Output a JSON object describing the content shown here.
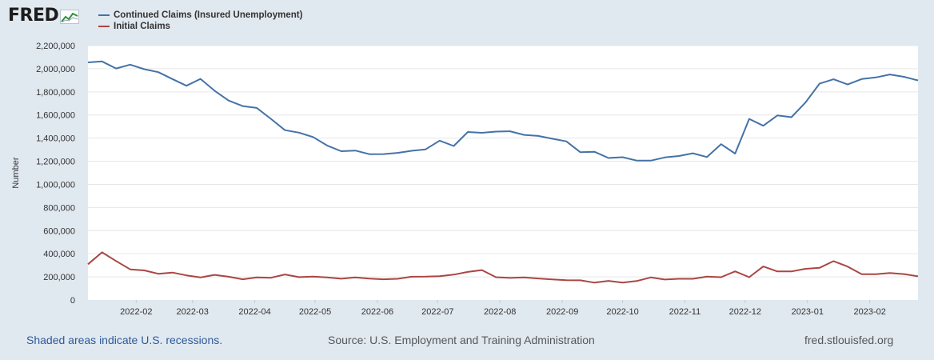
{
  "header": {
    "logo_text": "FRED",
    "logo_icon": "line-chart-icon"
  },
  "footer": {
    "recession_note": "Shaded areas indicate U.S. recessions.",
    "source": "Source: U.S. Employment and Training Administration",
    "site": "fred.stlouisfed.org"
  },
  "colors": {
    "continued": "#4572a7",
    "initial": "#aa4643",
    "plot_bg": "#ffffff",
    "gridline": "#e6e6e6",
    "page_bg": "#e1e9f0"
  },
  "chart_data": {
    "type": "line",
    "title": "",
    "xlabel": "",
    "ylabel": "Number",
    "ylim": [
      0,
      2200000
    ],
    "yticks": [
      0,
      200000,
      400000,
      600000,
      800000,
      1000000,
      1200000,
      1400000,
      1600000,
      1800000,
      2000000,
      2200000
    ],
    "ytick_labels": [
      "0",
      "200,000",
      "400,000",
      "600,000",
      "800,000",
      "1,000,000",
      "1,200,000",
      "1,400,000",
      "1,600,000",
      "1,800,000",
      "2,000,000",
      "2,200,000"
    ],
    "xlim": [
      "2022-01-08",
      "2023-02-25"
    ],
    "xticks": [
      "2022-02-01",
      "2022-03-01",
      "2022-04-01",
      "2022-05-01",
      "2022-06-01",
      "2022-07-01",
      "2022-08-01",
      "2022-09-01",
      "2022-10-01",
      "2022-11-01",
      "2022-12-01",
      "2023-01-01",
      "2023-02-01"
    ],
    "xtick_labels": [
      "2022-02",
      "2022-03",
      "2022-04",
      "2022-05",
      "2022-06",
      "2022-07",
      "2022-08",
      "2022-09",
      "2022-10",
      "2022-11",
      "2022-12",
      "2023-01",
      "2023-02"
    ],
    "grid": true,
    "legend_position": "top-left",
    "x": [
      "2022-01-08",
      "2022-01-15",
      "2022-01-22",
      "2022-01-29",
      "2022-02-05",
      "2022-02-12",
      "2022-02-19",
      "2022-02-26",
      "2022-03-05",
      "2022-03-12",
      "2022-03-19",
      "2022-03-26",
      "2022-04-02",
      "2022-04-09",
      "2022-04-16",
      "2022-04-23",
      "2022-04-30",
      "2022-05-07",
      "2022-05-14",
      "2022-05-21",
      "2022-05-28",
      "2022-06-04",
      "2022-06-11",
      "2022-06-18",
      "2022-06-25",
      "2022-07-02",
      "2022-07-09",
      "2022-07-16",
      "2022-07-23",
      "2022-07-30",
      "2022-08-06",
      "2022-08-13",
      "2022-08-20",
      "2022-08-27",
      "2022-09-03",
      "2022-09-10",
      "2022-09-17",
      "2022-09-24",
      "2022-10-01",
      "2022-10-08",
      "2022-10-15",
      "2022-10-22",
      "2022-10-29",
      "2022-11-05",
      "2022-11-12",
      "2022-11-19",
      "2022-11-26",
      "2022-12-03",
      "2022-12-10",
      "2022-12-17",
      "2022-12-24",
      "2022-12-31",
      "2023-01-07",
      "2023-01-14",
      "2023-01-21",
      "2023-01-28",
      "2023-02-04",
      "2023-02-11",
      "2023-02-18",
      "2023-02-25"
    ],
    "series": [
      {
        "name": "Continued Claims (Insured Unemployment)",
        "color": "#4572a7",
        "values": [
          2055000,
          2063000,
          2002000,
          2035000,
          1996000,
          1970000,
          1911000,
          1853000,
          1912000,
          1810000,
          1725000,
          1677000,
          1661000,
          1567000,
          1469000,
          1447000,
          1409000,
          1336000,
          1287000,
          1292000,
          1261000,
          1262000,
          1272000,
          1290000,
          1303000,
          1378000,
          1332000,
          1453000,
          1446000,
          1456000,
          1459000,
          1428000,
          1419000,
          1395000,
          1372000,
          1278000,
          1282000,
          1228000,
          1235000,
          1206000,
          1205000,
          1233000,
          1245000,
          1269000,
          1236000,
          1348000,
          1266000,
          1566000,
          1507000,
          1596000,
          1581000,
          1708000,
          1871000,
          1909000,
          1864000,
          1911000,
          1925000,
          1950000,
          1930000,
          1899000
        ]
      },
      {
        "name": "Initial Claims",
        "color": "#aa4643",
        "values": [
          309000,
          412000,
          337000,
          265000,
          256000,
          227000,
          237000,
          213000,
          195000,
          217000,
          201000,
          179000,
          195000,
          192000,
          221000,
          198000,
          203000,
          195000,
          184000,
          196000,
          185000,
          179000,
          183000,
          201000,
          202000,
          206000,
          219000,
          243000,
          259000,
          197000,
          191000,
          195000,
          186000,
          178000,
          171000,
          170000,
          150000,
          165000,
          150000,
          164000,
          195000,
          177000,
          183000,
          183000,
          202000,
          197000,
          248000,
          197000,
          290000,
          247000,
          247000,
          270000,
          278000,
          336000,
          289000,
          223000,
          223000,
          233000,
          224000,
          205000
        ]
      }
    ]
  }
}
